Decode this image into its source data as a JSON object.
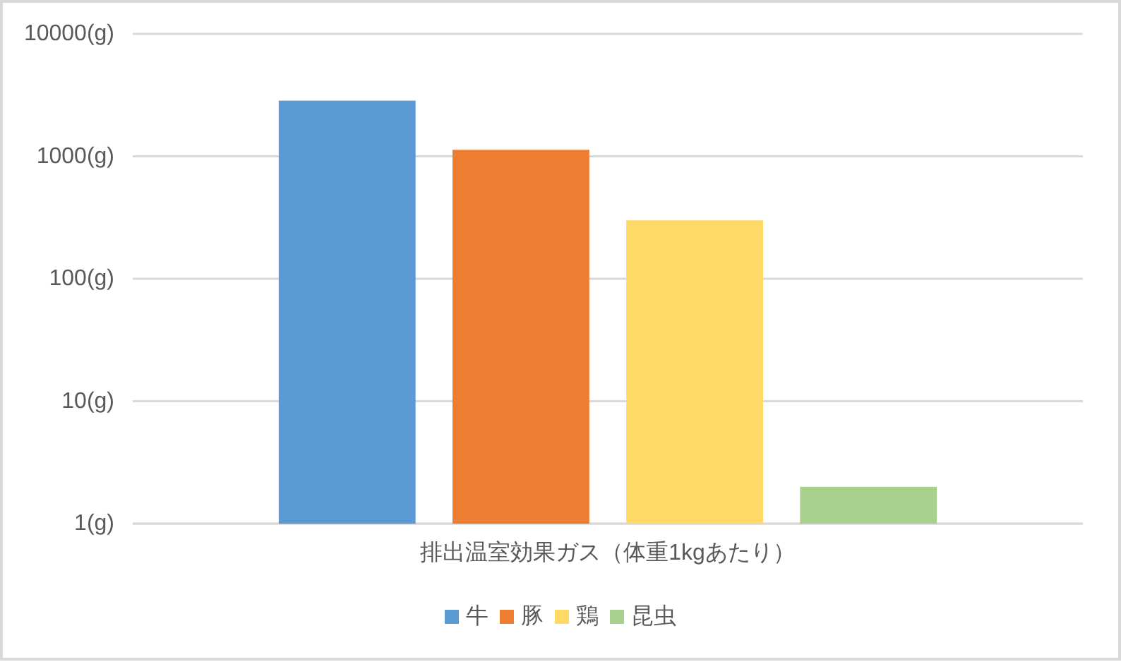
{
  "chart_data": {
    "type": "bar",
    "categories": [
      "排出温室効果ガス（体重1kgあたり）"
    ],
    "series": [
      {
        "name": "牛",
        "color": "#5b9bd5",
        "values": [
          2850
        ]
      },
      {
        "name": "豚",
        "color": "#ed7d31",
        "values": [
          1130
        ]
      },
      {
        "name": "鶏",
        "color": "#ffd966",
        "values": [
          300
        ]
      },
      {
        "name": "昆虫",
        "color": "#a9d18e",
        "values": [
          2
        ]
      }
    ],
    "log": true,
    "ylim": [
      1,
      10000
    ],
    "yticks": [
      {
        "value": 1,
        "label": "1(g)"
      },
      {
        "value": 10,
        "label": "10(g)"
      },
      {
        "value": 100,
        "label": "100(g)"
      },
      {
        "value": 1000,
        "label": "1000(g)"
      },
      {
        "value": 10000,
        "label": "10000(g)"
      }
    ],
    "grid": "y",
    "legend": "bottom"
  }
}
